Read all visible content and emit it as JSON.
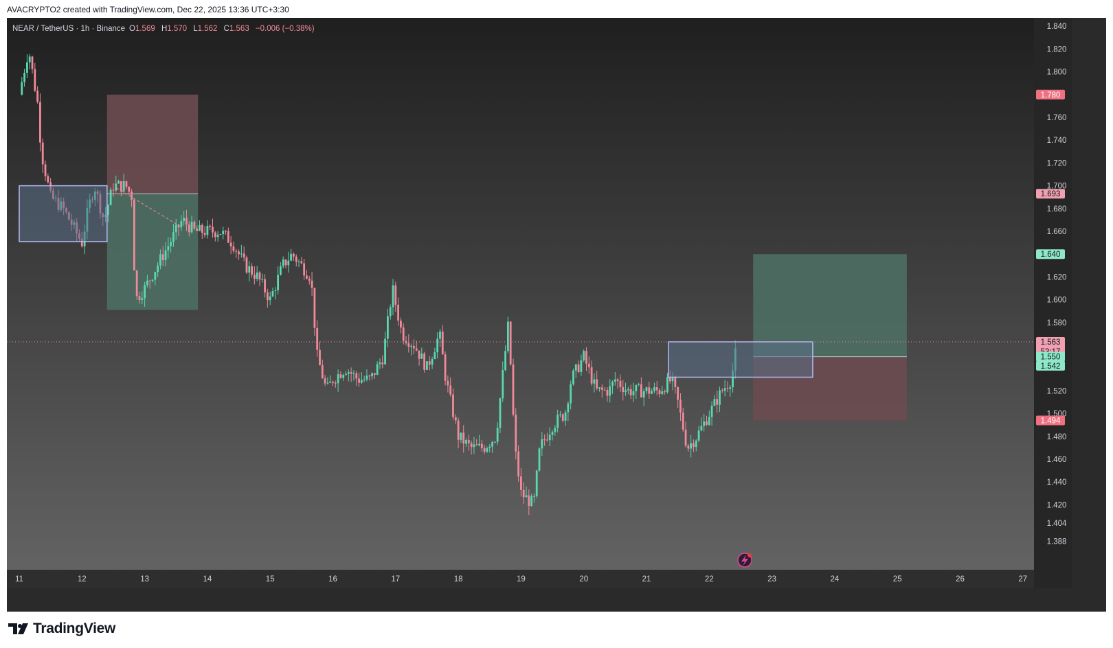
{
  "header": {
    "author_line": "AVACRYPTO2 created with TradingView.com, Dec 22, 2025 13:36 UTC+3:30"
  },
  "legend": {
    "symbol": "NEAR / TetherUS · 1h · Binance",
    "open_label": "O",
    "open": "1.569",
    "high_label": "H",
    "high": "1.570",
    "low_label": "L",
    "low": "1.562",
    "close_label": "C",
    "close": "1.563",
    "change": "−0.006 (−0.38%)"
  },
  "footer": {
    "brand": "TradingView"
  },
  "colors": {
    "up": "#5ad8b0",
    "down": "#f08a9a",
    "profit_zone": "#4e6e63",
    "loss_zone": "#6b4b50",
    "box_border": "#b4bbf5",
    "box_fill": "#5a6e86",
    "label_red": "#f07080",
    "label_pink": "#f0a0b0",
    "label_green": "#8ee8c8"
  },
  "chart_data": {
    "type": "candlestick",
    "title": "NEAR / TetherUS · 1h · Binance",
    "x_ticks": [
      "11",
      "12",
      "13",
      "14",
      "15",
      "16",
      "17",
      "18",
      "19",
      "20",
      "21",
      "22",
      "23",
      "24",
      "25",
      "26",
      "27"
    ],
    "y_ticks": [
      "1.840",
      "1.820",
      "1.800",
      "1.760",
      "1.740",
      "1.720",
      "1.700",
      "1.680",
      "1.660",
      "1.620",
      "1.600",
      "1.580",
      "1.520",
      "1.500",
      "1.480",
      "1.460",
      "1.440",
      "1.420",
      "1.404",
      "1.388"
    ],
    "price_labels": [
      {
        "value": "1.780",
        "style": "red"
      },
      {
        "value": "1.693",
        "style": "pink"
      },
      {
        "value": "1.640",
        "style": "green"
      },
      {
        "value": "1.563",
        "style": "pink",
        "sub": "53:17"
      },
      {
        "value": "1.550",
        "style": "green"
      },
      {
        "value": "1.542",
        "style": "green"
      },
      {
        "value": "1.494",
        "style": "red"
      }
    ],
    "last_price": 1.563,
    "price_path": [
      [
        11.0,
        1.78
      ],
      [
        11.15,
        1.82
      ],
      [
        11.3,
        1.77
      ],
      [
        11.35,
        1.73
      ],
      [
        11.5,
        1.69
      ],
      [
        11.7,
        1.68
      ],
      [
        11.9,
        1.66
      ],
      [
        12.0,
        1.65
      ],
      [
        12.1,
        1.68
      ],
      [
        12.2,
        1.7
      ],
      [
        12.35,
        1.67
      ],
      [
        12.5,
        1.7
      ],
      [
        12.7,
        1.7
      ],
      [
        12.8,
        1.69
      ],
      [
        12.85,
        1.6
      ],
      [
        13.0,
        1.61
      ],
      [
        13.2,
        1.63
      ],
      [
        13.4,
        1.65
      ],
      [
        13.6,
        1.67
      ],
      [
        13.8,
        1.66
      ],
      [
        14.0,
        1.66
      ],
      [
        14.2,
        1.66
      ],
      [
        14.4,
        1.65
      ],
      [
        14.6,
        1.63
      ],
      [
        14.8,
        1.62
      ],
      [
        15.0,
        1.6
      ],
      [
        15.2,
        1.63
      ],
      [
        15.35,
        1.64
      ],
      [
        15.5,
        1.63
      ],
      [
        15.65,
        1.62
      ],
      [
        15.75,
        1.55
      ],
      [
        15.9,
        1.52
      ],
      [
        16.0,
        1.53
      ],
      [
        16.2,
        1.54
      ],
      [
        16.4,
        1.53
      ],
      [
        16.6,
        1.53
      ],
      [
        16.8,
        1.55
      ],
      [
        16.95,
        1.61
      ],
      [
        17.1,
        1.57
      ],
      [
        17.3,
        1.56
      ],
      [
        17.5,
        1.54
      ],
      [
        17.7,
        1.57
      ],
      [
        17.8,
        1.53
      ],
      [
        18.0,
        1.48
      ],
      [
        18.2,
        1.47
      ],
      [
        18.4,
        1.47
      ],
      [
        18.6,
        1.48
      ],
      [
        18.8,
        1.58
      ],
      [
        18.9,
        1.47
      ],
      [
        19.0,
        1.43
      ],
      [
        19.2,
        1.42
      ],
      [
        19.3,
        1.47
      ],
      [
        19.5,
        1.49
      ],
      [
        19.7,
        1.5
      ],
      [
        19.8,
        1.53
      ],
      [
        20.0,
        1.55
      ],
      [
        20.2,
        1.52
      ],
      [
        20.4,
        1.52
      ],
      [
        20.5,
        1.53
      ],
      [
        20.7,
        1.52
      ],
      [
        21.0,
        1.52
      ],
      [
        21.2,
        1.52
      ],
      [
        21.4,
        1.53
      ],
      [
        21.5,
        1.51
      ],
      [
        21.65,
        1.47
      ],
      [
        21.8,
        1.48
      ],
      [
        22.0,
        1.5
      ],
      [
        22.2,
        1.52
      ],
      [
        22.35,
        1.53
      ],
      [
        22.45,
        1.563
      ]
    ],
    "zones": [
      {
        "kind": "loss",
        "x": [
          12.4,
          13.85
        ],
        "y": [
          1.693,
          1.78
        ]
      },
      {
        "kind": "profit",
        "x": [
          12.4,
          13.85
        ],
        "y": [
          1.591,
          1.693
        ]
      },
      {
        "kind": "box",
        "x": [
          11.0,
          12.4
        ],
        "y": [
          1.651,
          1.7
        ]
      },
      {
        "kind": "profit",
        "x": [
          22.7,
          25.15
        ],
        "y": [
          1.55,
          1.64
        ]
      },
      {
        "kind": "loss",
        "x": [
          22.7,
          25.15
        ],
        "y": [
          1.494,
          1.55
        ]
      },
      {
        "kind": "box",
        "x": [
          21.35,
          23.65
        ],
        "y": [
          1.532,
          1.563
        ]
      }
    ]
  }
}
